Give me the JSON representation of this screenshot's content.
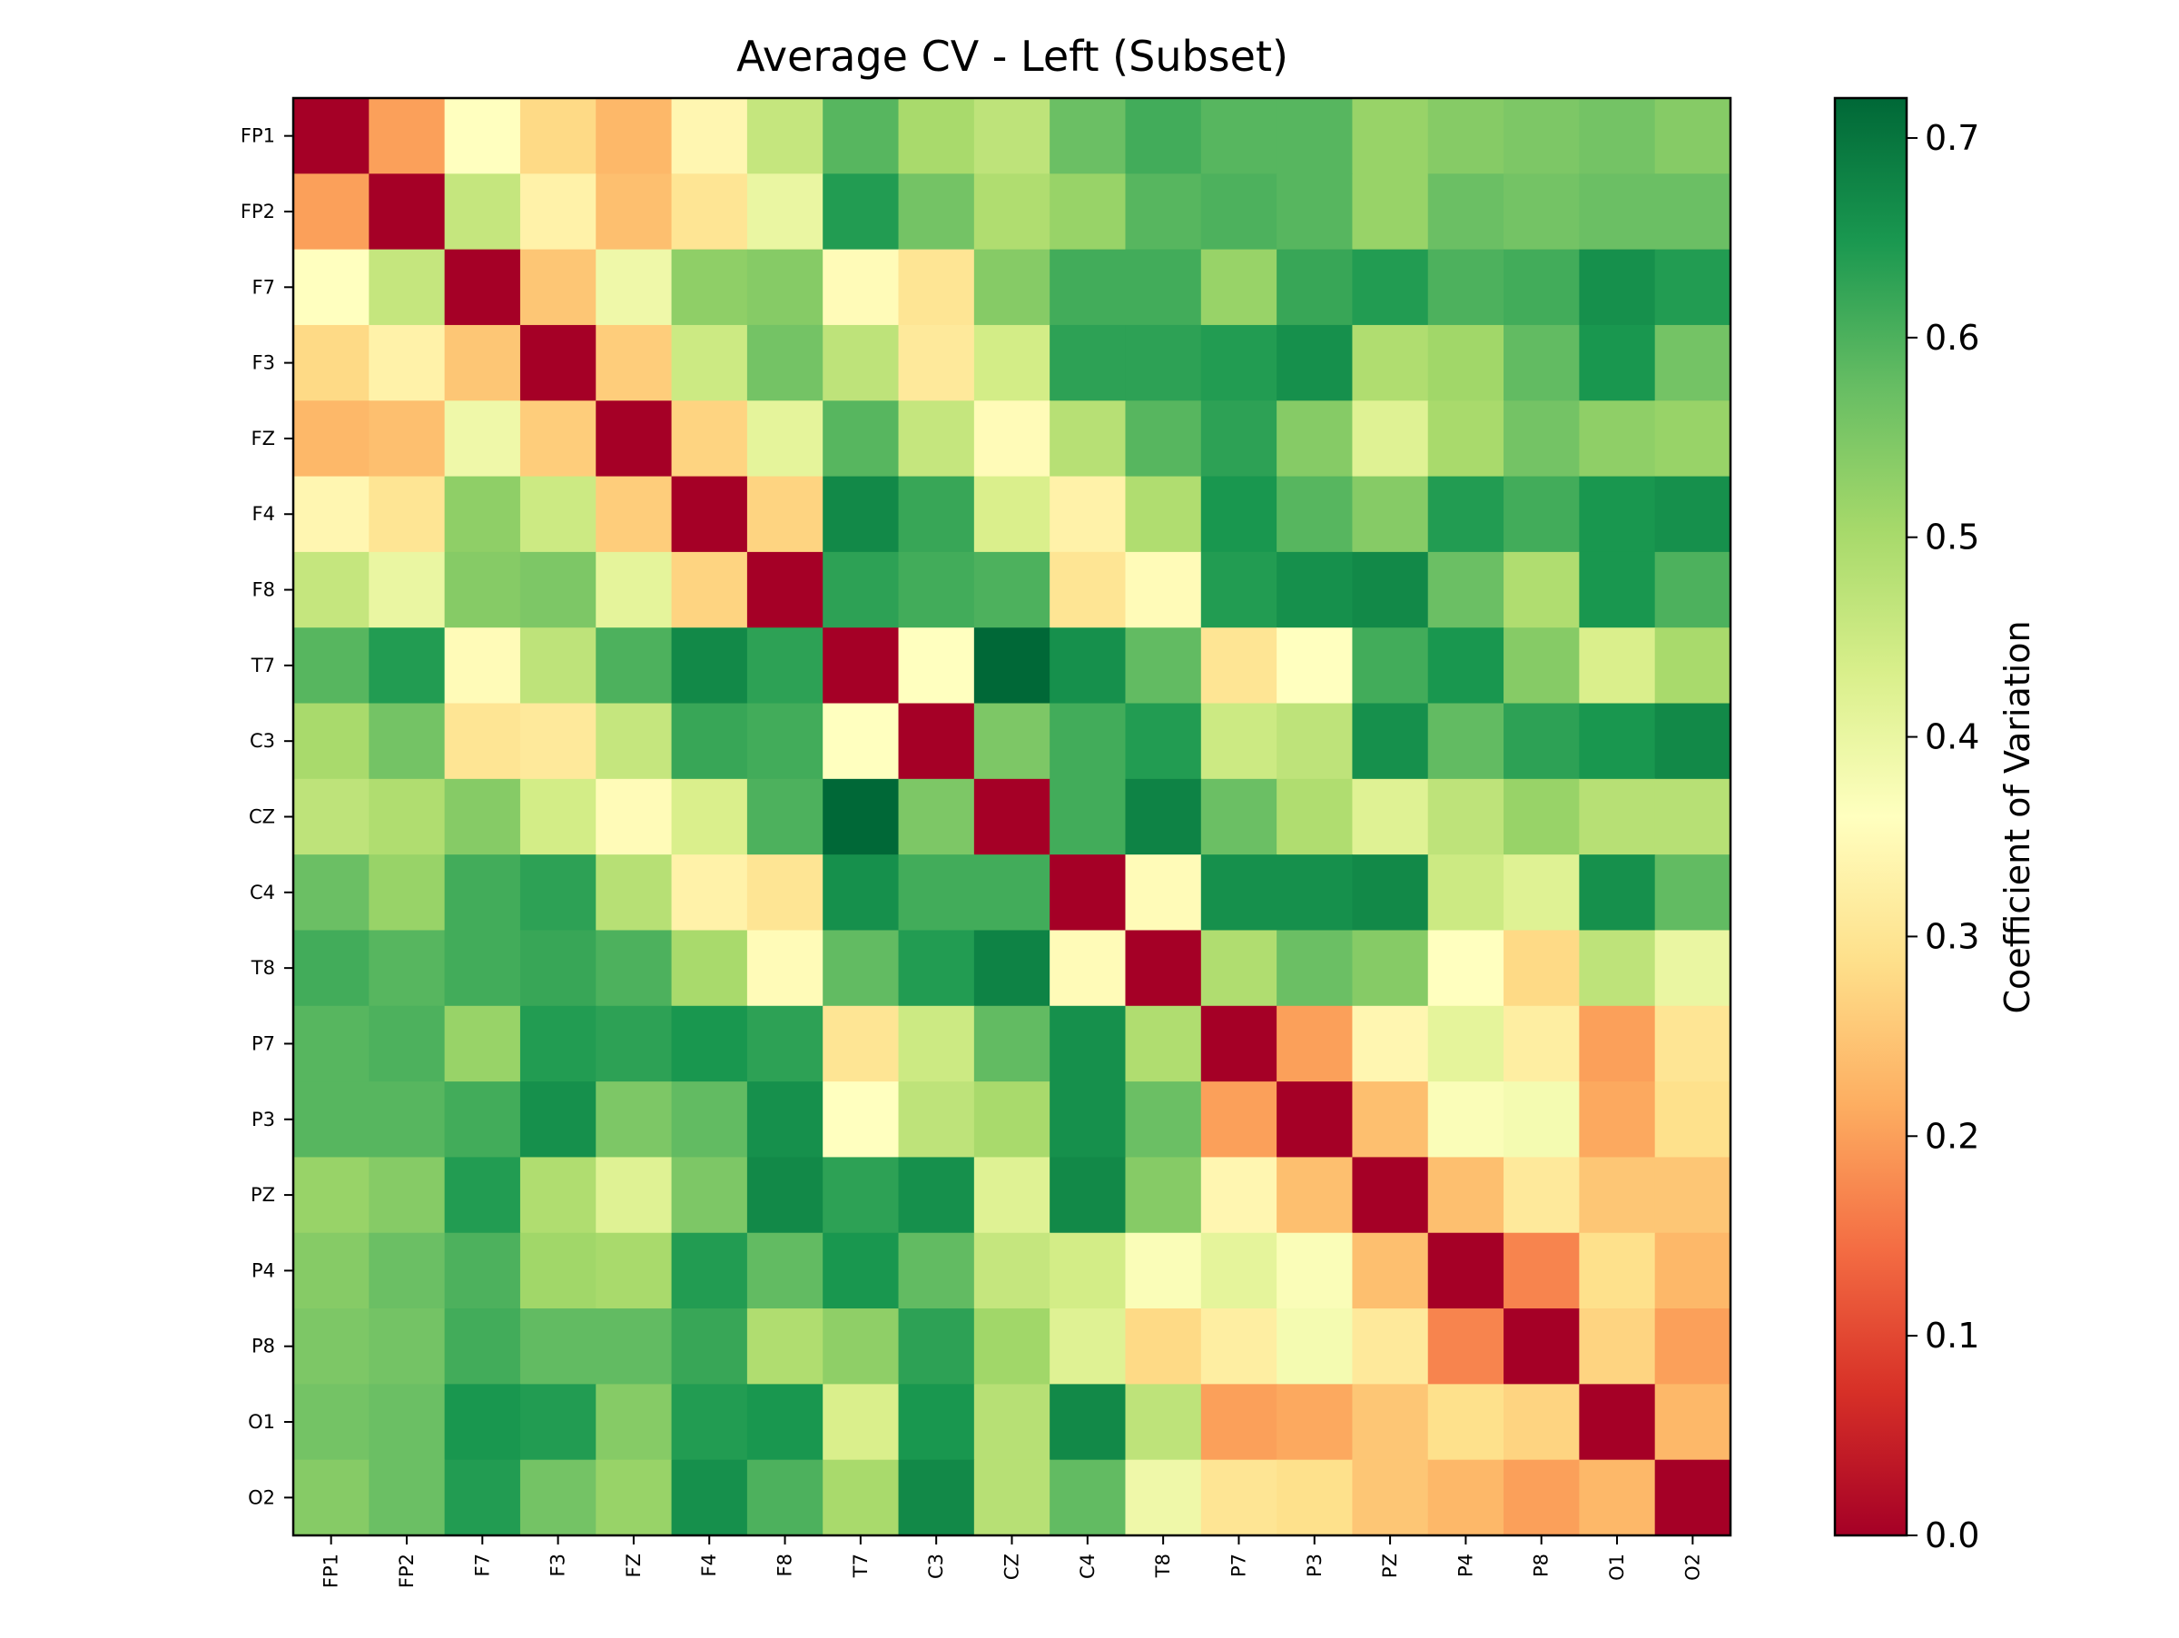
{
  "chart_data": {
    "type": "heatmap",
    "title": "Average CV - Left (Subset)",
    "xlabel": "",
    "ylabel": "",
    "x_labels": [
      "FP1",
      "FP2",
      "F7",
      "F3",
      "FZ",
      "F4",
      "F8",
      "T7",
      "C3",
      "CZ",
      "C4",
      "T8",
      "P7",
      "P3",
      "PZ",
      "P4",
      "P8",
      "O1",
      "O2"
    ],
    "y_labels": [
      "FP1",
      "FP2",
      "F7",
      "F3",
      "FZ",
      "F4",
      "F8",
      "T7",
      "C3",
      "CZ",
      "C4",
      "T8",
      "P7",
      "P3",
      "PZ",
      "P4",
      "P8",
      "O1",
      "O2"
    ],
    "colormap": "RdYlGn",
    "colorbar": {
      "label": "Coefficient of Variation",
      "range": [
        0,
        0.72
      ],
      "ticks": [
        "0.0",
        "0.1",
        "0.2",
        "0.3",
        "0.4",
        "0.5",
        "0.6",
        "0.7"
      ]
    },
    "values": [
      [
        0.0,
        0.2,
        0.36,
        0.28,
        0.23,
        0.34,
        0.46,
        0.59,
        0.5,
        0.47,
        0.57,
        0.61,
        0.59,
        0.59,
        0.52,
        0.54,
        0.55,
        0.56,
        0.54
      ],
      [
        0.2,
        0.0,
        0.46,
        0.33,
        0.24,
        0.3,
        0.4,
        0.64,
        0.56,
        0.49,
        0.52,
        0.59,
        0.6,
        0.59,
        0.52,
        0.57,
        0.56,
        0.57,
        0.57
      ],
      [
        0.36,
        0.46,
        0.0,
        0.25,
        0.39,
        0.53,
        0.54,
        0.35,
        0.3,
        0.54,
        0.61,
        0.61,
        0.52,
        0.62,
        0.64,
        0.6,
        0.61,
        0.66,
        0.64
      ],
      [
        0.28,
        0.33,
        0.25,
        0.0,
        0.26,
        0.45,
        0.56,
        0.47,
        0.31,
        0.44,
        0.63,
        0.63,
        0.64,
        0.66,
        0.49,
        0.51,
        0.58,
        0.65,
        0.56
      ],
      [
        0.23,
        0.24,
        0.39,
        0.26,
        0.0,
        0.27,
        0.41,
        0.59,
        0.46,
        0.35,
        0.48,
        0.59,
        0.63,
        0.54,
        0.42,
        0.5,
        0.56,
        0.53,
        0.52
      ],
      [
        0.34,
        0.3,
        0.53,
        0.45,
        0.26,
        0.0,
        0.27,
        0.67,
        0.62,
        0.43,
        0.33,
        0.49,
        0.65,
        0.59,
        0.54,
        0.64,
        0.61,
        0.65,
        0.66
      ],
      [
        0.46,
        0.4,
        0.54,
        0.55,
        0.41,
        0.27,
        0.0,
        0.63,
        0.61,
        0.6,
        0.3,
        0.35,
        0.64,
        0.66,
        0.67,
        0.57,
        0.49,
        0.65,
        0.6
      ],
      [
        0.59,
        0.64,
        0.35,
        0.47,
        0.6,
        0.67,
        0.63,
        0.0,
        0.36,
        0.72,
        0.66,
        0.58,
        0.3,
        0.36,
        0.61,
        0.65,
        0.54,
        0.43,
        0.5
      ],
      [
        0.5,
        0.56,
        0.3,
        0.31,
        0.46,
        0.62,
        0.61,
        0.36,
        0.0,
        0.55,
        0.61,
        0.64,
        0.45,
        0.47,
        0.66,
        0.58,
        0.63,
        0.65,
        0.67
      ],
      [
        0.47,
        0.49,
        0.54,
        0.44,
        0.35,
        0.43,
        0.6,
        0.72,
        0.55,
        0.0,
        0.61,
        0.68,
        0.57,
        0.49,
        0.42,
        0.47,
        0.52,
        0.48,
        0.48
      ],
      [
        0.57,
        0.52,
        0.61,
        0.63,
        0.48,
        0.33,
        0.3,
        0.66,
        0.61,
        0.61,
        0.0,
        0.35,
        0.66,
        0.66,
        0.67,
        0.45,
        0.42,
        0.66,
        0.58
      ],
      [
        0.61,
        0.59,
        0.61,
        0.62,
        0.6,
        0.5,
        0.35,
        0.58,
        0.64,
        0.68,
        0.35,
        0.0,
        0.49,
        0.57,
        0.54,
        0.36,
        0.28,
        0.47,
        0.4
      ],
      [
        0.59,
        0.6,
        0.52,
        0.64,
        0.63,
        0.65,
        0.63,
        0.3,
        0.45,
        0.58,
        0.66,
        0.49,
        0.0,
        0.2,
        0.34,
        0.41,
        0.32,
        0.2,
        0.3
      ],
      [
        0.59,
        0.59,
        0.61,
        0.66,
        0.55,
        0.58,
        0.66,
        0.36,
        0.47,
        0.5,
        0.66,
        0.57,
        0.2,
        0.0,
        0.24,
        0.37,
        0.38,
        0.21,
        0.29
      ],
      [
        0.52,
        0.54,
        0.64,
        0.49,
        0.42,
        0.55,
        0.67,
        0.63,
        0.66,
        0.42,
        0.67,
        0.54,
        0.34,
        0.24,
        0.0,
        0.24,
        0.31,
        0.25,
        0.25
      ],
      [
        0.54,
        0.57,
        0.6,
        0.51,
        0.5,
        0.64,
        0.58,
        0.65,
        0.58,
        0.46,
        0.44,
        0.37,
        0.41,
        0.37,
        0.24,
        0.0,
        0.17,
        0.29,
        0.23
      ],
      [
        0.55,
        0.56,
        0.61,
        0.58,
        0.58,
        0.62,
        0.49,
        0.53,
        0.63,
        0.51,
        0.42,
        0.28,
        0.32,
        0.38,
        0.31,
        0.17,
        0.0,
        0.27,
        0.2
      ],
      [
        0.56,
        0.57,
        0.65,
        0.64,
        0.54,
        0.64,
        0.65,
        0.43,
        0.65,
        0.48,
        0.67,
        0.47,
        0.2,
        0.21,
        0.25,
        0.29,
        0.27,
        0.0,
        0.23
      ],
      [
        0.54,
        0.57,
        0.64,
        0.56,
        0.52,
        0.66,
        0.6,
        0.5,
        0.67,
        0.48,
        0.58,
        0.39,
        0.3,
        0.29,
        0.25,
        0.23,
        0.2,
        0.23,
        0.0
      ]
    ]
  }
}
